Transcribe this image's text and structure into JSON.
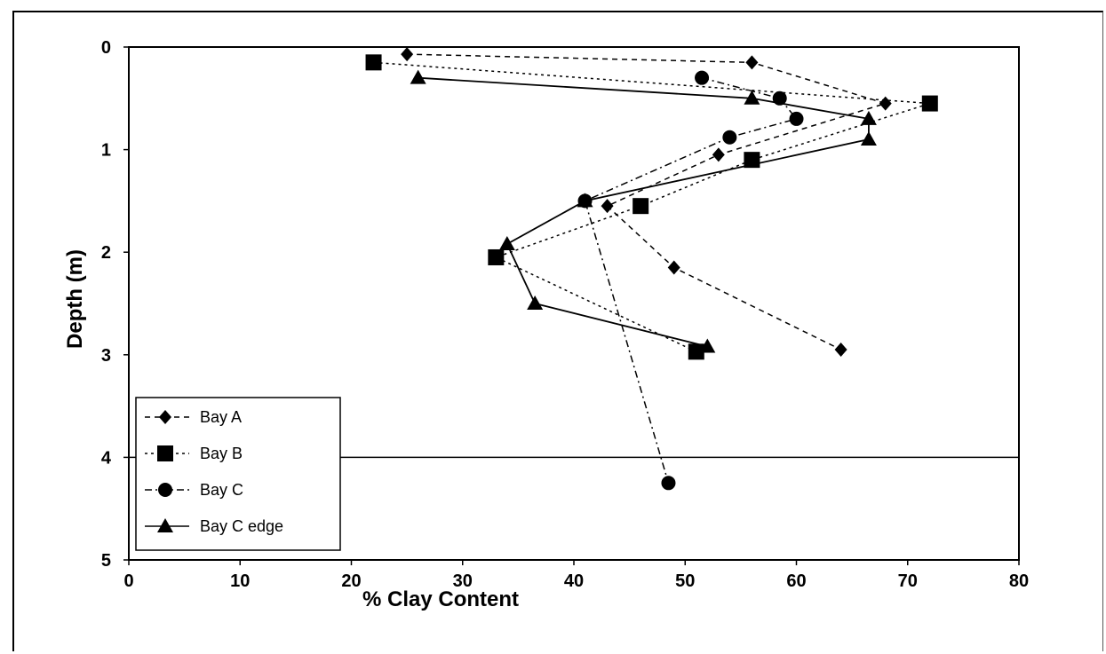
{
  "chart_data": {
    "type": "line",
    "xlabel": "% Clay Content",
    "ylabel": "Depth (m)",
    "xlim": [
      0,
      80
    ],
    "ylim": [
      0,
      5
    ],
    "y_inverted": true,
    "xticks": [
      "0",
      "10",
      "20",
      "30",
      "40",
      "50",
      "60",
      "70",
      "80"
    ],
    "yticks": [
      "0",
      "1",
      "2",
      "3",
      "4",
      "5"
    ],
    "reference_line_depth": 4,
    "legend_position": "bottom-left",
    "series": [
      {
        "name": "Bay A",
        "marker": "diamond",
        "line": "dashed",
        "points": [
          [
            25,
            0.07
          ],
          [
            56,
            0.15
          ],
          [
            68,
            0.55
          ],
          [
            53,
            1.05
          ],
          [
            43,
            1.55
          ],
          [
            49,
            2.15
          ],
          [
            64,
            2.95
          ]
        ]
      },
      {
        "name": "Bay B",
        "marker": "square",
        "line": "dotted",
        "points": [
          [
            22,
            0.15
          ],
          [
            72,
            0.55
          ],
          [
            56,
            1.1
          ],
          [
            46,
            1.55
          ],
          [
            33,
            2.05
          ],
          [
            51,
            2.97
          ]
        ]
      },
      {
        "name": "Bay C",
        "marker": "circle",
        "line": "dashdot",
        "points": [
          [
            51.5,
            0.3
          ],
          [
            58.5,
            0.5
          ],
          [
            60,
            0.7
          ],
          [
            54,
            0.88
          ],
          [
            41,
            1.5
          ],
          [
            48.5,
            4.25
          ]
        ]
      },
      {
        "name": "Bay C edge",
        "marker": "triangle",
        "line": "solid",
        "points": [
          [
            26,
            0.3
          ],
          [
            56,
            0.5
          ],
          [
            66.5,
            0.7
          ],
          [
            66.5,
            0.9
          ],
          [
            41,
            1.5
          ],
          [
            34,
            1.92
          ],
          [
            36.5,
            2.5
          ],
          [
            52,
            2.92
          ]
        ]
      }
    ]
  }
}
